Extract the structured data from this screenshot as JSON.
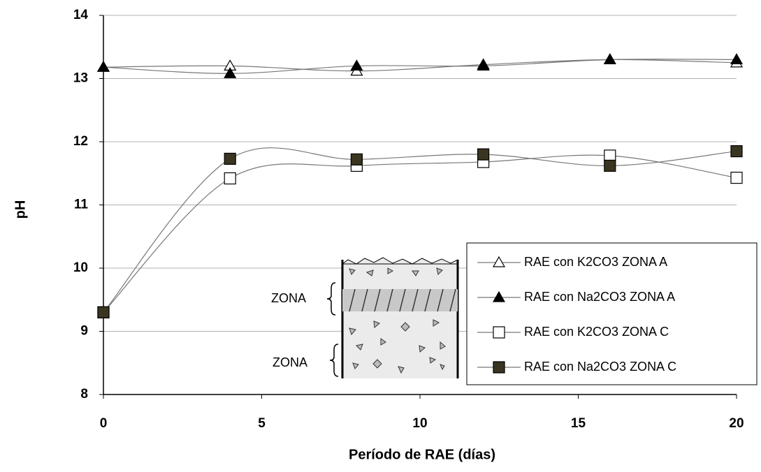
{
  "chart_data": {
    "type": "line",
    "x_label": "Período de RAE (días)",
    "y_label": "pH",
    "x": [
      0,
      4,
      8,
      12,
      16,
      20
    ],
    "series": [
      {
        "name": "RAE con K2CO3 ZONA A",
        "color": "#000000",
        "marker": "triangle-open",
        "values": [
          13.18,
          13.2,
          13.12,
          13.22,
          13.3,
          13.25
        ]
      },
      {
        "name": "RAE con Na2CO3 ZONA A",
        "color": "#000000",
        "marker": "triangle-filled",
        "values": [
          13.18,
          13.08,
          13.2,
          13.2,
          13.3,
          13.3
        ]
      },
      {
        "name": "RAE con K2CO3 ZONA C",
        "color": "#000000",
        "marker": "square-open",
        "values": [
          9.3,
          11.42,
          11.62,
          11.68,
          11.78,
          11.43
        ]
      },
      {
        "name": "RAE con Na2CO3 ZONA C",
        "color": "#3a3520",
        "marker": "square-filled",
        "values": [
          9.3,
          11.73,
          11.72,
          11.8,
          11.62,
          11.85
        ]
      }
    ],
    "xlim": [
      0,
      20
    ],
    "xticks": [
      0,
      5,
      10,
      15,
      20
    ],
    "ylim": [
      8,
      14
    ],
    "yticks": [
      8,
      9,
      10,
      11,
      12,
      13,
      14
    ],
    "grid": true,
    "smooth": true,
    "annotations": [
      "ZONA",
      "ZONA"
    ]
  }
}
